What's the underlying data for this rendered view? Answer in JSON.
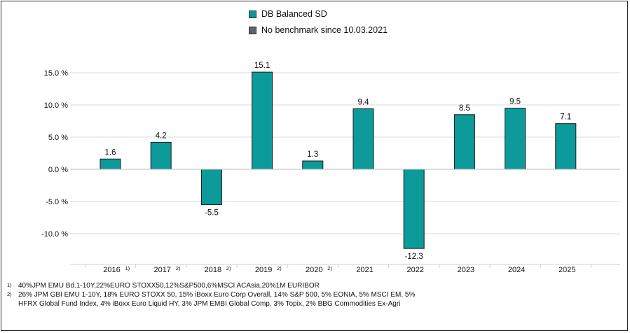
{
  "legend": [
    {
      "label": "DB Balanced SD",
      "color": "#0c9a9a"
    },
    {
      "label": "No benchmark since 10.03.2021",
      "color": "#5a6570"
    }
  ],
  "chart_data": {
    "type": "bar",
    "categories": [
      "2016",
      "2017",
      "2018",
      "2019",
      "2020",
      "2021",
      "2022",
      "2023",
      "2024",
      "2025"
    ],
    "category_footnotes": [
      "1)",
      "2)",
      "2)",
      "2)",
      "2)",
      "",
      "",
      "",
      "",
      ""
    ],
    "series": [
      {
        "name": "DB Balanced SD",
        "values": [
          1.6,
          4.2,
          -5.5,
          15.1,
          1.3,
          9.4,
          -12.3,
          8.5,
          9.5,
          7.1
        ]
      }
    ],
    "data_labels": [
      "1.6",
      "4.2",
      "-5.5",
      "15.1",
      "1.3",
      "9.4",
      "-12.3",
      "8.5",
      "9.5",
      "7.1"
    ],
    "yticks": [
      15,
      10,
      5,
      0,
      -5,
      -10
    ],
    "ytick_labels": [
      "15.0 %",
      "10.0 %",
      "5.0 %",
      "0.0 %",
      "-5.0 %",
      "-10.0 %"
    ],
    "ylim": [
      -15,
      17.5
    ],
    "grid": true,
    "colors": {
      "bar": "#0c9a9a",
      "bar_edge": "#1a1a1a",
      "grid": "#d8d8d8"
    }
  },
  "footnotes": [
    {
      "mark": "1)",
      "text": "40%JPM EMU Bd.1-10Y,22%EURO STOXX50,12%S&P500,6%MSCI ACAsia,20%1M EURIBOR"
    },
    {
      "mark": "2)",
      "text": "26% JPM GBI EMU 1-10Y, 18% EURO STOXX 50, 15% iBoxx Euro Corp Overall, 14% S&P 500, 5% EONIA, 5% MSCI EM, 5% HFRX Global Fund Index, 4% iBoxx Euro Liquid HY, 3% JPM EMBI Global Comp, 3% Topix, 2% BBG Commodities Ex-Agri"
    }
  ]
}
